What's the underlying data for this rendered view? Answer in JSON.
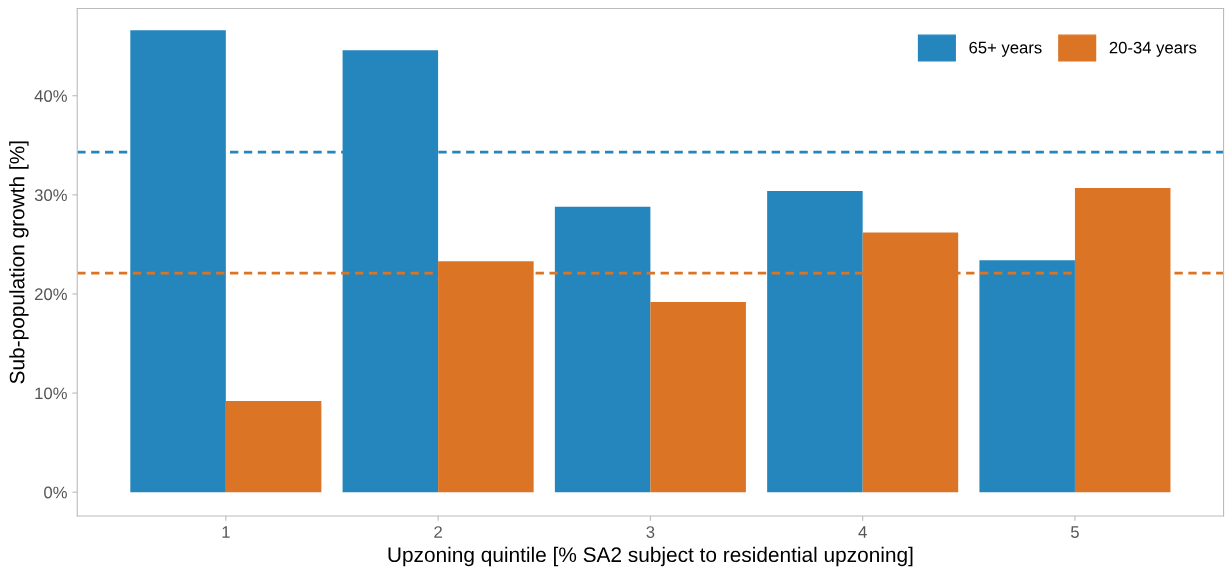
{
  "chart_data": {
    "type": "bar",
    "xlabel": "Upzoning quintile [% SA2 subject to residential upzoning]",
    "ylabel": "Sub-population growth [%]",
    "categories": [
      "1",
      "2",
      "3",
      "4",
      "5"
    ],
    "series": [
      {
        "name": "65+ years",
        "color": "#2586bd",
        "values": [
          46.6,
          44.6,
          28.8,
          30.4,
          23.4
        ]
      },
      {
        "name": "20-34 years",
        "color": "#db7425",
        "values": [
          9.2,
          23.3,
          19.2,
          26.2,
          30.7
        ]
      }
    ],
    "ref_lines": [
      {
        "axis": "y",
        "value": 34.3,
        "color": "#2586bd",
        "line_style": "dashed"
      },
      {
        "axis": "y",
        "value": 22.1,
        "color": "#db7425",
        "line_style": "dashed"
      }
    ],
    "ylim": [
      -2.4,
      48.8
    ],
    "yticks": [
      {
        "value": 0,
        "label": "0%"
      },
      {
        "value": 10,
        "label": "10%"
      },
      {
        "value": 20,
        "label": "20%"
      },
      {
        "value": 30,
        "label": "30%"
      },
      {
        "value": 40,
        "label": "40%"
      }
    ],
    "grid": false,
    "legend": "top right"
  }
}
